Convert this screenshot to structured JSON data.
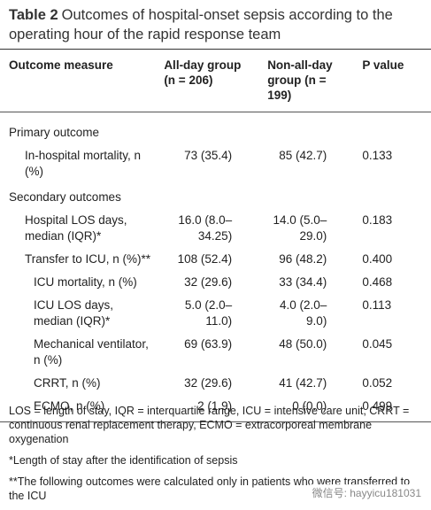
{
  "header": {
    "label": "Table 2",
    "title": "Outcomes of hospital-onset sepsis according to the operating hour of the rapid response team"
  },
  "table": {
    "columns": [
      "Outcome measure",
      "All-day group (n = 206)",
      "Non-all-day group (n = 199)",
      "P value"
    ],
    "sections": [
      {
        "title": "Primary outcome",
        "rows": [
          {
            "cells": [
              "In-hospital mortality, n (%)",
              "73 (35.4)",
              "85 (42.7)",
              "0.133"
            ]
          }
        ]
      },
      {
        "title": "Secondary outcomes",
        "rows": [
          {
            "cells": [
              "Hospital LOS days, median (IQR)*",
              "16.0 (8.0–34.25)",
              "14.0 (5.0–29.0)",
              "0.183"
            ]
          },
          {
            "cells": [
              "Transfer to ICU, n (%)**",
              "108 (52.4)",
              "96 (48.2)",
              "0.400"
            ],
            "subrows": [
              {
                "cells": [
                  "ICU mortality, n (%)",
                  "32 (29.6)",
                  "33 (34.4)",
                  "0.468"
                ]
              },
              {
                "cells": [
                  "ICU LOS days, median (IQR)*",
                  "5.0 (2.0–11.0)",
                  "4.0 (2.0–9.0)",
                  "0.113"
                ]
              },
              {
                "cells": [
                  "Mechanical ventilator, n (%)",
                  "69 (63.9)",
                  "48 (50.0)",
                  "0.045"
                ]
              },
              {
                "cells": [
                  "CRRT, n (%)",
                  "32 (29.6)",
                  "41 (42.7)",
                  "0.052"
                ]
              },
              {
                "cells": [
                  "ECMO, n (%)",
                  "2 (1.9)",
                  "0 (0.0)",
                  "0.499"
                ]
              }
            ]
          }
        ]
      }
    ]
  },
  "footnotes": [
    "LOS = length of stay, IQR = interquartile range, ICU = intensive care unit, CRRT = continuous renal replacement therapy, ECMO = extracorporeal membrane oxygenation",
    "*Length of stay after the identification of sepsis",
    "**The following outcomes were calculated only in patients who were transferred to the ICU"
  ],
  "watermark": "微信号: hayyicu181031"
}
